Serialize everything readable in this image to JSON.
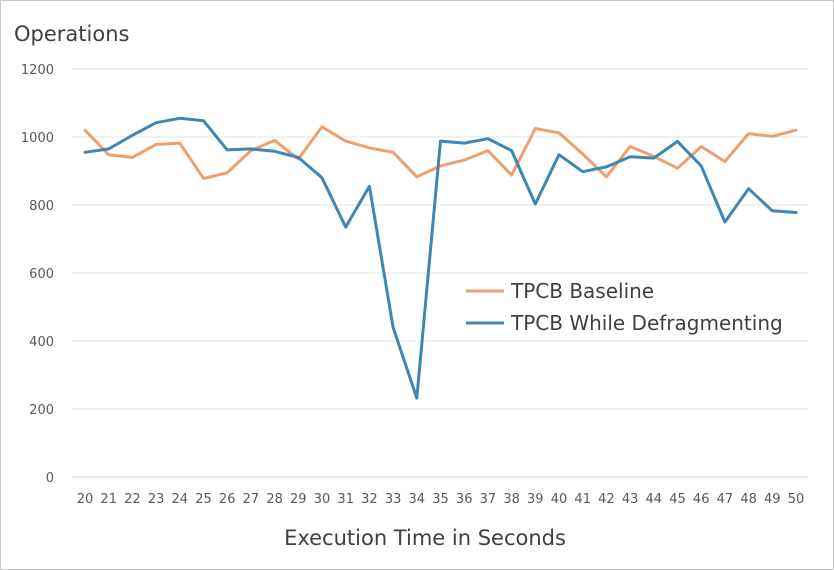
{
  "chart_data": {
    "type": "line",
    "title": "Operations",
    "xlabel": "Execution Time in Seconds",
    "ylabel": "",
    "x": [
      20,
      21,
      22,
      23,
      24,
      25,
      26,
      27,
      28,
      29,
      30,
      31,
      32,
      33,
      34,
      35,
      36,
      37,
      38,
      39,
      40,
      41,
      42,
      43,
      44,
      45,
      46,
      47,
      48,
      49,
      50
    ],
    "ylim": [
      0,
      1200
    ],
    "yticks": [
      0,
      200,
      400,
      600,
      800,
      1000,
      1200
    ],
    "grid": true,
    "legend_position": "right-center",
    "series": [
      {
        "name": "TPCB Baseline",
        "color": "#ED9F6E",
        "values": [
          1020,
          948,
          940,
          978,
          982,
          878,
          895,
          960,
          990,
          935,
          1030,
          988,
          968,
          955,
          883,
          915,
          932,
          960,
          888,
          1025,
          1012,
          950,
          883,
          972,
          943,
          908,
          972,
          928,
          1010,
          1002,
          1020
        ]
      },
      {
        "name": "TPCB While Defragmenting",
        "color": "#3E87B5",
        "values": [
          955,
          965,
          1005,
          1042,
          1055,
          1048,
          962,
          965,
          958,
          940,
          880,
          735,
          855,
          440,
          232,
          988,
          982,
          995,
          960,
          803,
          948,
          898,
          912,
          942,
          938,
          987,
          915,
          750,
          848,
          783,
          778
        ]
      }
    ]
  }
}
